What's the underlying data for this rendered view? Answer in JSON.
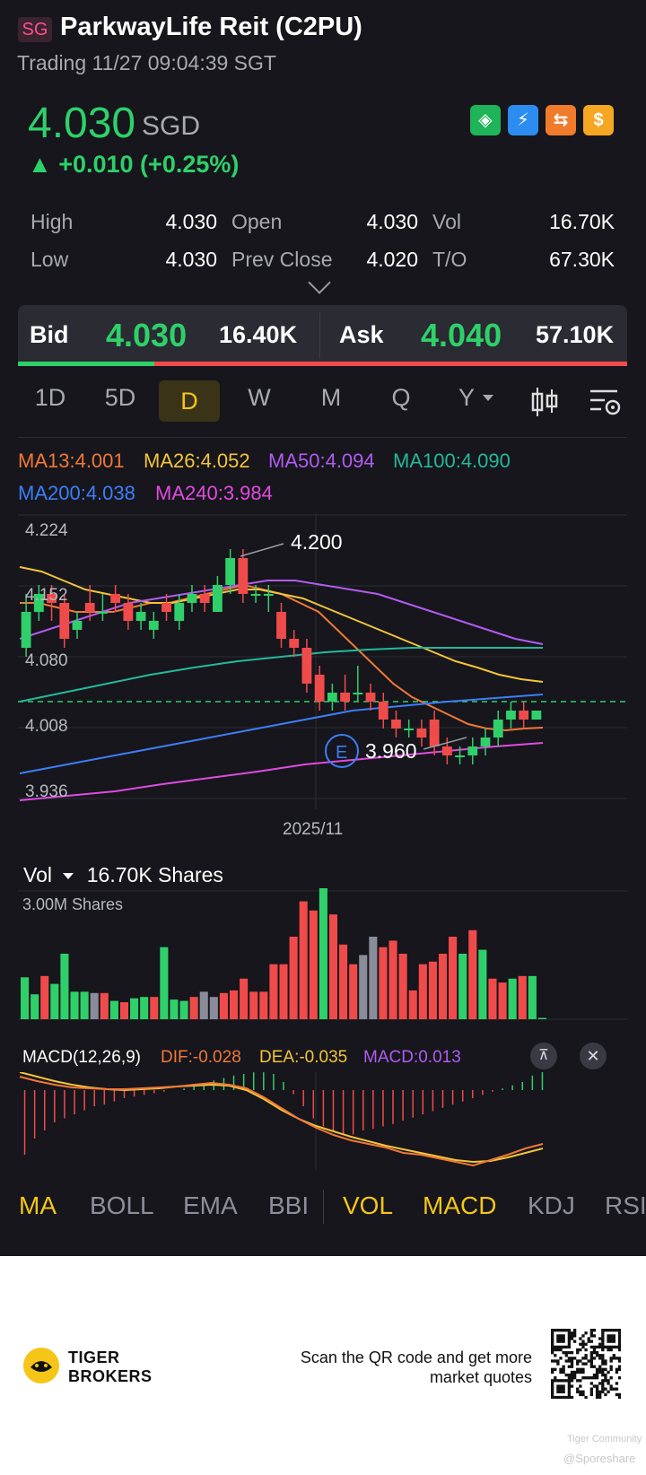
{
  "header": {
    "market_badge": "SG",
    "title": "ParkwayLife Reit (C2PU)",
    "trading_status": "Trading 11/27 09:04:39 SGT"
  },
  "quote": {
    "price": "4.030",
    "currency": "SGD",
    "change": "▲ +0.010 (+0.25%)",
    "icons": [
      "cash-hand-icon",
      "lightning-icon",
      "swap-icon",
      "dollar-icon"
    ]
  },
  "stats": {
    "high_label": "High",
    "high": "4.030",
    "open_label": "Open",
    "open": "4.030",
    "vol_label": "Vol",
    "vol": "16.70K",
    "low_label": "Low",
    "low": "4.030",
    "prev_close_label": "Prev Close",
    "prev_close": "4.020",
    "to_label": "T/O",
    "to": "67.30K"
  },
  "bidask": {
    "bid_label": "Bid",
    "bid": "4.030",
    "bid_vol": "16.40K",
    "ask_label": "Ask",
    "ask": "4.040",
    "ask_vol": "57.10K",
    "bid_ratio": 0.22
  },
  "periods": [
    "1D",
    "5D",
    "D",
    "W",
    "M",
    "Q",
    "Y"
  ],
  "active_period": "D",
  "ma_legend": {
    "ma13": "MA13:4.001",
    "ma26": "MA26:4.052",
    "ma50": "MA50:4.094",
    "ma100": "MA100:4.090",
    "ma200": "MA200:4.038",
    "ma240": "MA240:3.984"
  },
  "colors": {
    "up": "#2fd06a",
    "down": "#f04b4b",
    "ma13": "#f07838",
    "ma26": "#f3c43a",
    "ma50": "#b15cf0",
    "ma100": "#26b89a",
    "ma200": "#3d7ef7",
    "ma240": "#e04be0",
    "accent": "#f5c518"
  },
  "chart_labels": {
    "y_ticks": [
      "4.224",
      "4.152",
      "4.080",
      "4.008",
      "3.936"
    ],
    "x_tick": "2025/11",
    "high_marker": "4.200",
    "low_marker": "3.960",
    "earnings_marker": "E"
  },
  "chart_data": {
    "type": "candlestick",
    "ylim": [
      3.92,
      4.24
    ],
    "candles": [
      [
        4.09,
        4.13,
        4.15,
        4.08
      ],
      [
        4.13,
        4.15,
        4.16,
        4.12
      ],
      [
        4.15,
        4.14,
        4.16,
        4.12
      ],
      [
        4.14,
        4.1,
        4.15,
        4.09
      ],
      [
        4.11,
        4.12,
        4.13,
        4.1
      ],
      [
        4.14,
        4.13,
        4.16,
        4.12
      ],
      [
        4.13,
        4.13,
        4.15,
        4.12
      ],
      [
        4.15,
        4.14,
        4.16,
        4.13
      ],
      [
        4.14,
        4.12,
        4.15,
        4.11
      ],
      [
        4.12,
        4.13,
        4.14,
        4.11
      ],
      [
        4.11,
        4.12,
        4.13,
        4.1
      ],
      [
        4.14,
        4.13,
        4.15,
        4.12
      ],
      [
        4.12,
        4.14,
        4.15,
        4.11
      ],
      [
        4.14,
        4.15,
        4.16,
        4.13
      ],
      [
        4.15,
        4.14,
        4.16,
        4.13
      ],
      [
        4.13,
        4.16,
        4.17,
        4.13
      ],
      [
        4.16,
        4.19,
        4.2,
        4.15
      ],
      [
        4.19,
        4.15,
        4.2,
        4.14
      ],
      [
        4.15,
        4.15,
        4.16,
        4.14
      ],
      [
        4.15,
        4.15,
        4.16,
        4.13
      ],
      [
        4.13,
        4.1,
        4.14,
        4.09
      ],
      [
        4.1,
        4.09,
        4.11,
        4.08
      ],
      [
        4.09,
        4.05,
        4.1,
        4.04
      ],
      [
        4.06,
        4.03,
        4.07,
        4.02
      ],
      [
        4.03,
        4.04,
        4.05,
        4.02
      ],
      [
        4.04,
        4.03,
        4.06,
        4.02
      ],
      [
        4.04,
        4.04,
        4.07,
        4.03
      ],
      [
        4.04,
        4.03,
        4.05,
        4.02
      ],
      [
        4.03,
        4.01,
        4.04,
        4.0
      ],
      [
        4.01,
        4.0,
        4.02,
        3.99
      ],
      [
        4.0,
        4.0,
        4.01,
        3.99
      ],
      [
        4.0,
        3.99,
        4.01,
        3.98
      ],
      [
        4.01,
        3.98,
        4.02,
        3.97
      ],
      [
        3.98,
        3.97,
        3.99,
        3.96
      ],
      [
        3.97,
        3.97,
        3.98,
        3.96
      ],
      [
        3.97,
        3.98,
        3.99,
        3.96
      ],
      [
        3.98,
        3.99,
        4.0,
        3.97
      ],
      [
        3.99,
        4.01,
        4.02,
        3.98
      ],
      [
        4.01,
        4.02,
        4.03,
        4.0
      ],
      [
        4.02,
        4.01,
        4.03,
        4.0
      ],
      [
        4.01,
        4.02,
        4.02,
        4.01
      ]
    ],
    "last_price": 4.03,
    "series": [
      {
        "name": "MA13",
        "values": [
          4.14,
          4.14,
          4.135,
          4.13,
          4.13,
          4.13,
          4.135,
          4.14,
          4.14,
          4.145,
          4.15,
          4.155,
          4.16,
          4.155,
          4.15,
          4.14,
          4.13,
          4.11,
          4.09,
          4.07,
          4.05,
          4.035,
          4.025,
          4.015,
          4.005,
          4.0,
          3.998,
          4.0,
          4.001
        ]
      },
      {
        "name": "MA26",
        "values": [
          4.18,
          4.175,
          4.165,
          4.155,
          4.15,
          4.145,
          4.14,
          4.14,
          4.145,
          4.15,
          4.155,
          4.155,
          4.15,
          4.145,
          4.135,
          4.125,
          4.115,
          4.105,
          4.095,
          4.085,
          4.075,
          4.068,
          4.06,
          4.055,
          4.052
        ]
      },
      {
        "name": "MA50",
        "values": [
          4.1,
          4.11,
          4.12,
          4.13,
          4.14,
          4.145,
          4.15,
          4.155,
          4.16,
          4.165,
          4.165,
          4.16,
          4.155,
          4.15,
          4.14,
          4.13,
          4.12,
          4.11,
          4.1,
          4.094
        ]
      },
      {
        "name": "MA100",
        "values": [
          4.03,
          4.04,
          4.05,
          4.06,
          4.068,
          4.075,
          4.08,
          4.085,
          4.088,
          4.09,
          4.09,
          4.09,
          4.09
        ]
      },
      {
        "name": "MA200",
        "values": [
          3.95,
          3.96,
          3.97,
          3.98,
          3.99,
          4.0,
          4.01,
          4.02,
          4.025,
          4.03,
          4.034,
          4.038
        ]
      },
      {
        "name": "MA240",
        "values": [
          3.92,
          3.925,
          3.93,
          3.938,
          3.945,
          3.952,
          3.96,
          3.965,
          3.97,
          3.975,
          3.98,
          3.984
        ]
      }
    ]
  },
  "volume": {
    "label": "Vol",
    "shares": "16.70K Shares",
    "scale": "3.00M Shares",
    "values": [
      0.32,
      0.19,
      0.33,
      0.27,
      0.5,
      0.21,
      0.21,
      0.2,
      0.2,
      0.14,
      0.13,
      0.16,
      0.17,
      0.17,
      0.55,
      0.15,
      0.14,
      0.17,
      0.21,
      0.17,
      0.2,
      0.22,
      0.31,
      0.21,
      0.21,
      0.42,
      0.42,
      0.63,
      0.9,
      0.83,
      1.0,
      0.8,
      0.57,
      0.42,
      0.49,
      0.63,
      0.55,
      0.6,
      0.5,
      0.22,
      0.42,
      0.44,
      0.5,
      0.63,
      0.5,
      0.68,
      0.53,
      0.31,
      0.28,
      0.31,
      0.33,
      0.33,
      0.01
    ],
    "ups": [
      1,
      1,
      0,
      1,
      1,
      1,
      1,
      0,
      0,
      1,
      0,
      1,
      1,
      0,
      1,
      1,
      1,
      0,
      0,
      1,
      0,
      0,
      0,
      0,
      0,
      0,
      0,
      0,
      0,
      0,
      1,
      0,
      0,
      0,
      0,
      0,
      0,
      0,
      0,
      0,
      0,
      0,
      0,
      0,
      1,
      0,
      1,
      0,
      0,
      1,
      0,
      1,
      1
    ],
    "greys": [
      7,
      18,
      19,
      34,
      35
    ]
  },
  "macd": {
    "title": "MACD(12,26,9)",
    "dif": "DIF:-0.028",
    "dea": "DEA:-0.035",
    "macd": "MACD:0.013",
    "hist": [
      -0.8,
      -0.6,
      -0.5,
      -0.4,
      -0.35,
      -0.3,
      -0.25,
      -0.2,
      -0.18,
      -0.14,
      -0.1,
      -0.08,
      -0.06,
      -0.04,
      -0.02,
      0.0,
      0.02,
      0.05,
      0.08,
      0.12,
      0.15,
      0.18,
      0.2,
      0.22,
      0.22,
      0.2,
      0.1,
      -0.05,
      -0.2,
      -0.35,
      -0.45,
      -0.5,
      -0.55,
      -0.55,
      -0.5,
      -0.48,
      -0.45,
      -0.42,
      -0.38,
      -0.34,
      -0.3,
      -0.26,
      -0.22,
      -0.18,
      -0.14,
      -0.1,
      -0.06,
      -0.02,
      0.02,
      0.06,
      0.1,
      0.18,
      0.3
    ]
  },
  "indicator_tabs": {
    "main": [
      "MA",
      "BOLL",
      "EMA",
      "BBI"
    ],
    "sub": [
      "VOL",
      "MACD",
      "KDJ",
      "RSI"
    ]
  },
  "footer": {
    "brand_line1": "TIGER",
    "brand_line2": "BROKERS",
    "cta_line1": "Scan the QR code and get more",
    "cta_line2": "market quotes",
    "community": "Tiger Community",
    "handle": "@Sporeshare"
  }
}
